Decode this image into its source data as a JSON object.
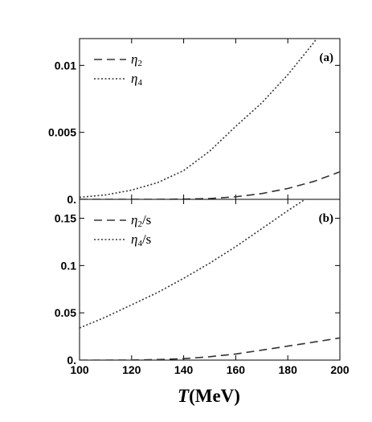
{
  "chart_data": [
    {
      "panel": "(a)",
      "type": "line",
      "x": [
        100,
        110,
        120,
        130,
        140,
        150,
        160,
        170,
        180,
        190,
        200
      ],
      "xlim": [
        100,
        200
      ],
      "ylim": [
        0,
        0.012
      ],
      "yticks": [
        "0.",
        "0.005",
        "0.01"
      ],
      "ytick_values": [
        0,
        0.005,
        0.01
      ],
      "grid": false,
      "legend": "top-left",
      "series": [
        {
          "name": "η2",
          "symbol": "η",
          "sub": "2",
          "suffix": "",
          "style": "dashed",
          "values": [
            0.0,
            0.0,
            0.0,
            0.0,
            1e-05,
            6e-05,
            0.00019,
            0.00043,
            0.00081,
            0.00134,
            0.00205
          ]
        },
        {
          "name": "η4",
          "symbol": "η",
          "sub": "4",
          "suffix": "",
          "style": "dotted",
          "values": [
            0.00015,
            0.00033,
            0.00069,
            0.00125,
            0.00215,
            0.0036,
            0.00545,
            0.0072,
            0.0093,
            0.0117,
            0.0145
          ]
        }
      ]
    },
    {
      "panel": "(b)",
      "type": "line",
      "x": [
        100,
        110,
        120,
        130,
        140,
        150,
        160,
        170,
        180,
        190,
        200
      ],
      "xlim": [
        100,
        200
      ],
      "ylim": [
        0,
        0.17
      ],
      "xticks": [
        "100",
        "120",
        "140",
        "160",
        "180",
        "200"
      ],
      "xtick_values": [
        100,
        120,
        140,
        160,
        180,
        200
      ],
      "yticks": [
        "0.",
        "0.05",
        "0.1",
        "0.15"
      ],
      "ytick_values": [
        0,
        0.05,
        0.1,
        0.15
      ],
      "xlabel_var": "T",
      "xlabel_unit": "(MeV)",
      "grid": false,
      "legend": "top-left",
      "series": [
        {
          "name": "η2/s",
          "symbol": "η",
          "sub": "2",
          "suffix": "/s",
          "style": "dashed",
          "values": [
            0.0,
            0.0,
            0.0001,
            0.0006,
            0.0015,
            0.0036,
            0.0065,
            0.0105,
            0.0148,
            0.019,
            0.0235
          ]
        },
        {
          "name": "η4/s",
          "symbol": "η",
          "sub": "4",
          "suffix": "/s",
          "style": "dotted",
          "values": [
            0.034,
            0.0455,
            0.0585,
            0.0715,
            0.0865,
            0.1025,
            0.12,
            0.139,
            0.158,
            0.176,
            0.195
          ]
        }
      ]
    }
  ]
}
